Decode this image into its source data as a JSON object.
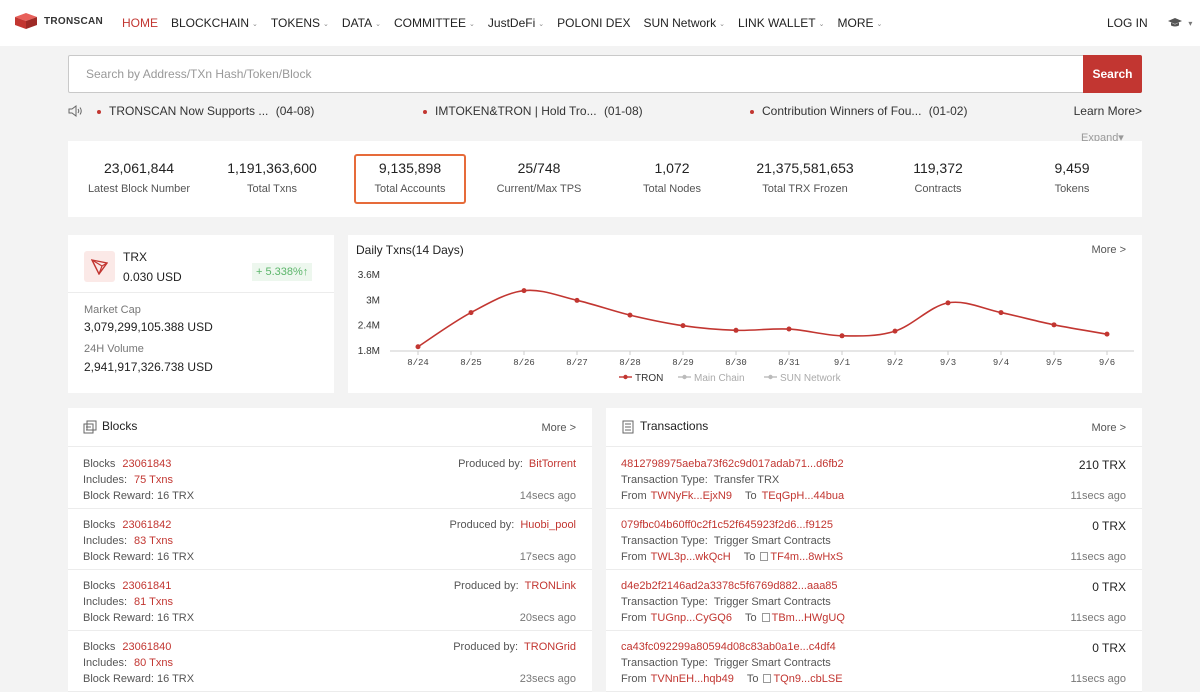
{
  "brand": {
    "name": "TRONSCAN",
    "color": "#c23631"
  },
  "nav": {
    "items": [
      {
        "label": "HOME",
        "caret": false,
        "active": true
      },
      {
        "label": "BLOCKCHAIN",
        "caret": true
      },
      {
        "label": "TOKENS",
        "caret": true
      },
      {
        "label": "DATA",
        "caret": true
      },
      {
        "label": "COMMITTEE",
        "caret": true
      },
      {
        "label": "JustDeFi",
        "caret": true
      },
      {
        "label": "POLONI DEX",
        "caret": false
      },
      {
        "label": "SUN Network",
        "caret": true
      },
      {
        "label": "LINK WALLET",
        "caret": true
      },
      {
        "label": "MORE",
        "caret": true
      }
    ],
    "login": "LOG IN",
    "caret_glyph": "⌄"
  },
  "search": {
    "placeholder": "Search by Address/TXn Hash/Token/Block",
    "button": "Search"
  },
  "news": {
    "items": [
      {
        "title": "TRONSCAN Now Supports ...",
        "date": "(04-08)"
      },
      {
        "title": "IMTOKEN&TRON | Hold Tro...",
        "date": "(01-08)"
      },
      {
        "title": "Contribution Winners of Fou...",
        "date": "(01-02)"
      }
    ],
    "learn_more": "Learn More>",
    "expand": "Expand▾"
  },
  "stats": [
    {
      "value": "23,061,844",
      "label": "Latest Block Number"
    },
    {
      "value": "1,191,363,600",
      "label": "Total Txns"
    },
    {
      "value": "9,135,898",
      "label": "Total Accounts",
      "highlighted": true
    },
    {
      "value": "25/748",
      "label": "Current/Max TPS"
    },
    {
      "value": "1,072",
      "label": "Total Nodes"
    },
    {
      "value": "21,375,581,653",
      "label": "Total TRX Frozen"
    },
    {
      "value": "119,372",
      "label": "Contracts"
    },
    {
      "value": "9,459",
      "label": "Tokens"
    }
  ],
  "price": {
    "symbol": "TRX",
    "price": "0.030 USD",
    "change": "+ 5.338%↑",
    "market_cap_label": "Market Cap",
    "market_cap": "3,079,299,105.388 USD",
    "volume_label": "24H Volume",
    "volume": "2,941,917,326.738 USD"
  },
  "daily_chart": {
    "title": "Daily Txns(14 Days)",
    "more": "More >"
  },
  "chart_data": {
    "type": "line",
    "title": "Daily Txns(14 Days)",
    "categories": [
      "8/24",
      "8/25",
      "8/26",
      "8/27",
      "8/28",
      "8/29",
      "8/30",
      "8/31",
      "9/1",
      "9/2",
      "9/3",
      "9/4",
      "9/5",
      "9/6"
    ],
    "yticks": [
      1.8,
      2.4,
      3.0,
      3.6
    ],
    "ytick_labels": [
      "1.8M",
      "2.4M",
      "3M",
      "3.6M"
    ],
    "ylim": [
      1.8,
      3.6
    ],
    "series": [
      {
        "name": "TRON",
        "color": "#c23631",
        "values": [
          1.9,
          2.71,
          3.23,
          3.0,
          2.65,
          2.4,
          2.29,
          2.32,
          2.16,
          2.27,
          2.94,
          2.71,
          2.42,
          2.2
        ]
      }
    ],
    "legend": [
      {
        "name": "TRON",
        "color": "#c23631"
      },
      {
        "name": "Main Chain",
        "color": "#bbbbbb"
      },
      {
        "name": "SUN Network",
        "color": "#bbbbbb"
      }
    ],
    "legend_position": "bottom-center",
    "grid": false
  },
  "blocks": {
    "title": "Blocks",
    "more": "More >",
    "blocks_prefix": "Blocks",
    "includes_prefix": "Includes:",
    "produced_prefix": "Produced by:",
    "rows": [
      {
        "number": "23061843",
        "txns": "75 Txns",
        "reward": "Block Reward: 16 TRX",
        "producer": "BitTorrent",
        "age": "14secs ago"
      },
      {
        "number": "23061842",
        "txns": "83 Txns",
        "reward": "Block Reward: 16 TRX",
        "producer": "Huobi_pool",
        "age": "17secs ago"
      },
      {
        "number": "23061841",
        "txns": "81 Txns",
        "reward": "Block Reward: 16 TRX",
        "producer": "TRONLink",
        "age": "20secs ago"
      },
      {
        "number": "23061840",
        "txns": "80 Txns",
        "reward": "Block Reward: 16 TRX",
        "producer": "TRONGrid",
        "age": "23secs ago"
      }
    ]
  },
  "transactions": {
    "title": "Transactions",
    "more": "More >",
    "type_prefix": "Transaction Type:",
    "from_prefix": "From",
    "to_prefix": "To",
    "rows": [
      {
        "hash": "4812798975aeba73f62c9d017adab71...d6fb2",
        "type": "Transfer TRX",
        "from": "TWNyFk...EjxN9",
        "to": "TEqGpH...44bua",
        "contract": false,
        "amount": "210 TRX",
        "age": "11secs ago"
      },
      {
        "hash": "079fbc04b60ff0c2f1c52f645923f2d6...f9125",
        "type": "Trigger Smart Contracts",
        "from": "TWL3p...wkQcH",
        "to": "TF4m...8wHxS",
        "contract": true,
        "amount": "0 TRX",
        "age": "11secs ago"
      },
      {
        "hash": "d4e2b2f2146ad2a3378c5f6769d882...aaa85",
        "type": "Trigger Smart Contracts",
        "from": "TUGnp...CyGQ6",
        "to": "TBm...HWgUQ",
        "contract": true,
        "amount": "0 TRX",
        "age": "11secs ago"
      },
      {
        "hash": "ca43fc092299a80594d08c83ab0a1e...c4df4",
        "type": "Trigger Smart Contracts",
        "from": "TVNnEH...hqb49",
        "to": "TQn9...cbLSE",
        "contract": true,
        "amount": "0 TRX",
        "age": "11secs ago"
      }
    ]
  }
}
